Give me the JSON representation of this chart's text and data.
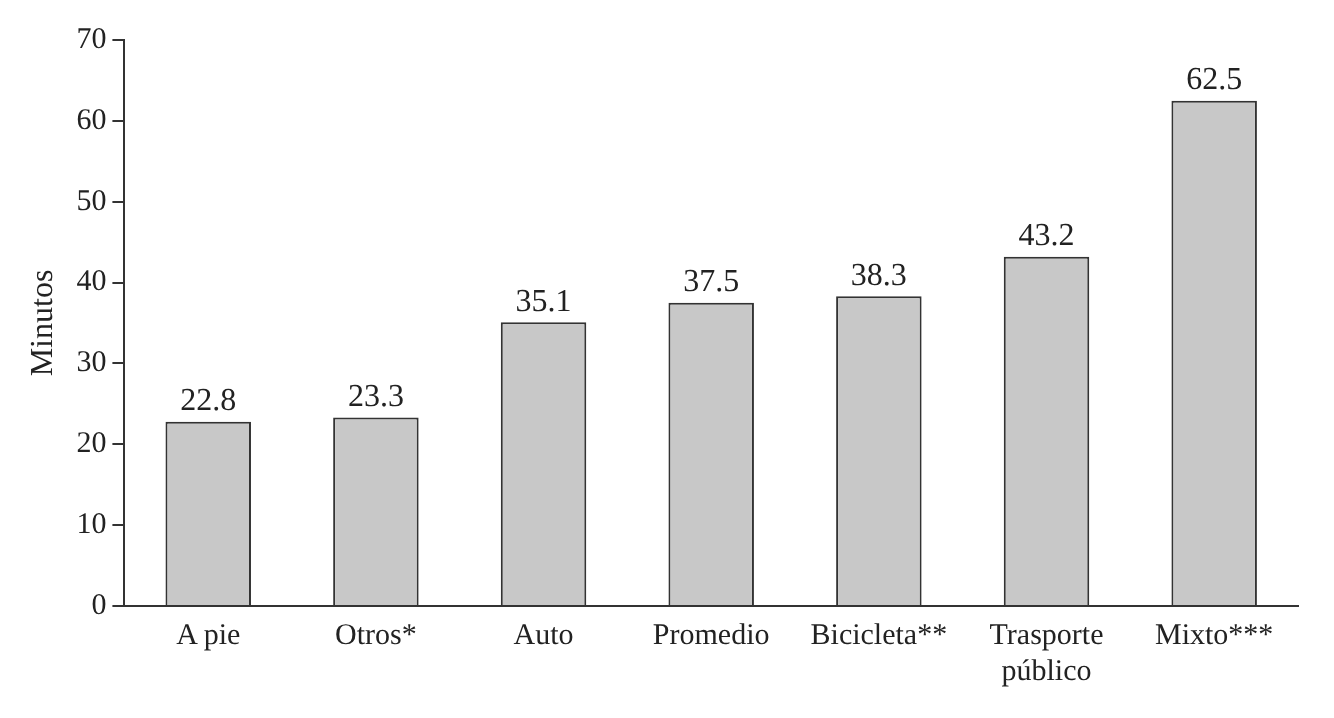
{
  "chart_data": {
    "type": "bar",
    "ylabel": "Minutos",
    "categories": [
      "A pie",
      "Otros*",
      "Auto",
      "Promedio",
      "Bicicleta**",
      "Trasporte público",
      "Mixto***"
    ],
    "values": [
      22.8,
      23.3,
      35.1,
      37.5,
      38.3,
      43.2,
      62.5
    ],
    "color": "#c8c8c8",
    "ylim": [
      0,
      70
    ],
    "yticks": [
      0,
      10,
      20,
      30,
      40,
      50,
      60,
      70
    ],
    "grid": false,
    "legend": false,
    "data_labels": true
  }
}
